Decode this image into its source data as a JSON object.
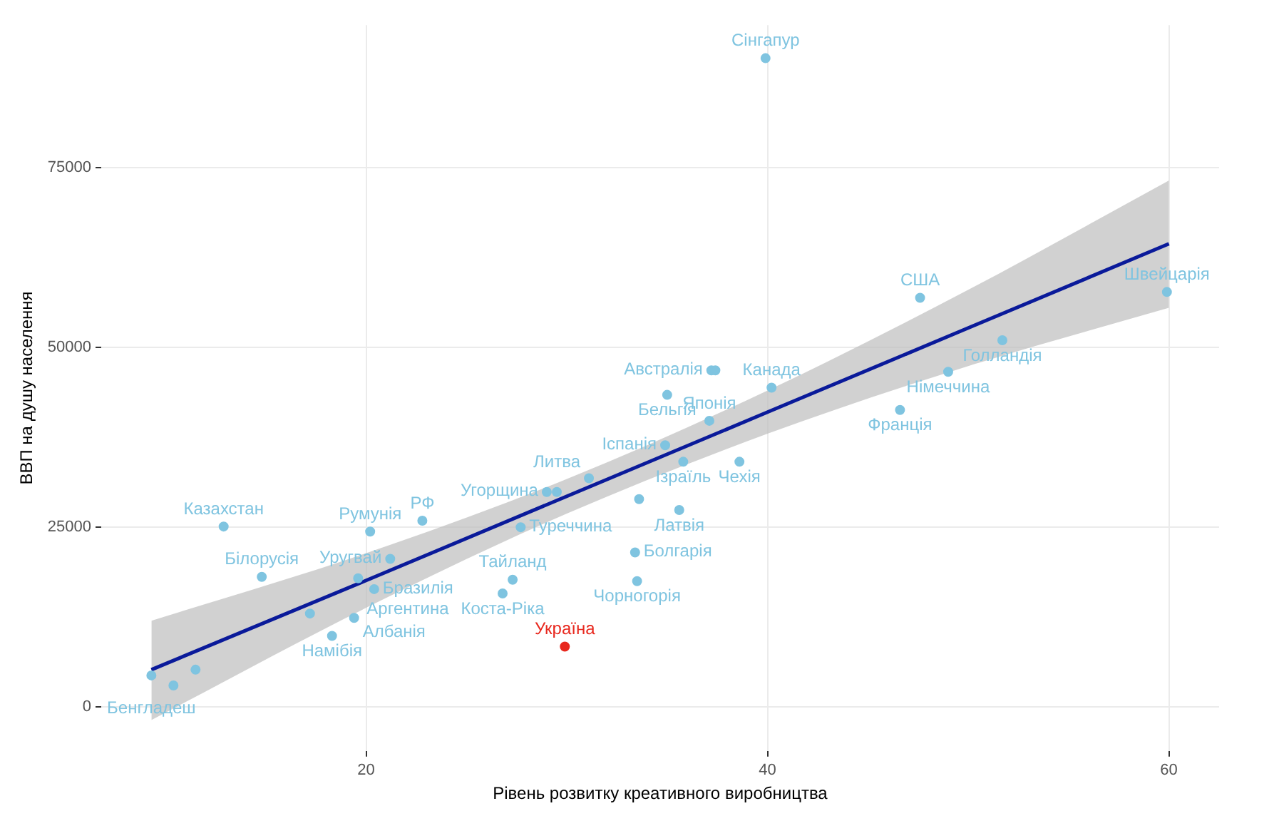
{
  "chart_data": {
    "type": "scatter",
    "xlabel": "Рівень розвитку креативного виробництва",
    "ylabel": "ВВП на душу населення",
    "xlim": [
      6.8,
      62.5
    ],
    "ylim": [
      -6100,
      94800
    ],
    "xticks": [
      20,
      40,
      60
    ],
    "yticks": [
      0,
      25000,
      50000,
      75000
    ],
    "grid": true,
    "legend": false,
    "series": [
      {
        "marker": "circle",
        "color": "#7fc4e0",
        "x": [
          39.9,
          47.6,
          59.9,
          51.7,
          49.0,
          46.6,
          40.2,
          37.2,
          37.4,
          35.0,
          37.1,
          34.9,
          35.8,
          38.6,
          31.1,
          29.0,
          29.5,
          35.6,
          33.6,
          27.7,
          22.8,
          20.2,
          12.9,
          14.8,
          21.2,
          19.6,
          20.4,
          19.4,
          18.3,
          17.2,
          9.3,
          10.4,
          11.5,
          27.3,
          26.8,
          33.4,
          33.5
        ],
        "values": [
          90200,
          56900,
          57700,
          51000,
          46600,
          41300,
          44400,
          46800,
          46800,
          43400,
          39800,
          36400,
          34100,
          34100,
          31800,
          29900,
          29900,
          27400,
          28900,
          25000,
          25900,
          24400,
          25100,
          18100,
          20600,
          17900,
          16400,
          12400,
          9900,
          13000,
          4400,
          3000,
          5200,
          17700,
          15800,
          21500,
          17500
        ]
      },
      {
        "marker": "circle",
        "color": "#e8281e",
        "x": [
          29.9
        ],
        "values": [
          8400
        ]
      },
      {
        "type": "line",
        "marker": "none",
        "color": "#0a1a9a",
        "x": [
          9.3,
          20,
          30,
          40,
          50,
          60
        ],
        "values": [
          5200,
          17600,
          29300,
          41000,
          52700,
          64400
        ],
        "lower": [
          -1800,
          13800,
          26900,
          38000,
          47400,
          55500
        ],
        "upper": [
          12000,
          21400,
          31700,
          44000,
          58000,
          73200
        ]
      }
    ],
    "annotations": [
      {
        "text": "Сінгапур",
        "x": 39.9,
        "y": 90200
      },
      {
        "text": "США",
        "x": 47.6,
        "y": 56900
      },
      {
        "text": "Швейцарія",
        "x": 59.9,
        "y": 57700
      },
      {
        "text": "Голландія",
        "x": 51.7,
        "y": 51000
      },
      {
        "text": "Німеччина",
        "x": 49.0,
        "y": 46600
      },
      {
        "text": "Франція",
        "x": 46.6,
        "y": 41300
      },
      {
        "text": "Канада",
        "x": 40.2,
        "y": 44400
      },
      {
        "text": "Австралія",
        "x": 37.2,
        "y": 46800
      },
      {
        "text": "Бельгія",
        "x": 35.0,
        "y": 43400
      },
      {
        "text": "Японія",
        "x": 37.1,
        "y": 39800
      },
      {
        "text": "Іспанія",
        "x": 34.9,
        "y": 36400
      },
      {
        "text": "Ізраїль",
        "x": 35.8,
        "y": 34100
      },
      {
        "text": "Чехія",
        "x": 38.6,
        "y": 34100
      },
      {
        "text": "Литва",
        "x": 31.1,
        "y": 31800
      },
      {
        "text": "Угорщина",
        "x": 29.0,
        "y": 29900
      },
      {
        "text": "Латвія",
        "x": 35.6,
        "y": 27400
      },
      {
        "text": "Туреччина",
        "x": 27.7,
        "y": 25000
      },
      {
        "text": "РФ",
        "x": 22.8,
        "y": 25900
      },
      {
        "text": "Румунія",
        "x": 20.2,
        "y": 24400
      },
      {
        "text": "Казахстан",
        "x": 12.9,
        "y": 25100
      },
      {
        "text": "Білорусія",
        "x": 14.8,
        "y": 18100
      },
      {
        "text": "Уругвай",
        "x": 21.2,
        "y": 20600
      },
      {
        "text": "Аргентина",
        "x": 19.6,
        "y": 17900
      },
      {
        "text": "Бразилія",
        "x": 20.4,
        "y": 16400
      },
      {
        "text": "Албанія",
        "x": 19.4,
        "y": 12400
      },
      {
        "text": "Намібія",
        "x": 18.3,
        "y": 9900
      },
      {
        "text": "Бенгладеш",
        "x": 9.3,
        "y": 4400
      },
      {
        "text": "Тайланд",
        "x": 27.3,
        "y": 17700
      },
      {
        "text": "Коста-Ріка",
        "x": 26.8,
        "y": 15800
      },
      {
        "text": "Болгарія",
        "x": 33.4,
        "y": 21500
      },
      {
        "text": "Чорногорія",
        "x": 33.5,
        "y": 17500
      },
      {
        "text": "Україна",
        "x": 29.9,
        "y": 8400
      }
    ]
  }
}
